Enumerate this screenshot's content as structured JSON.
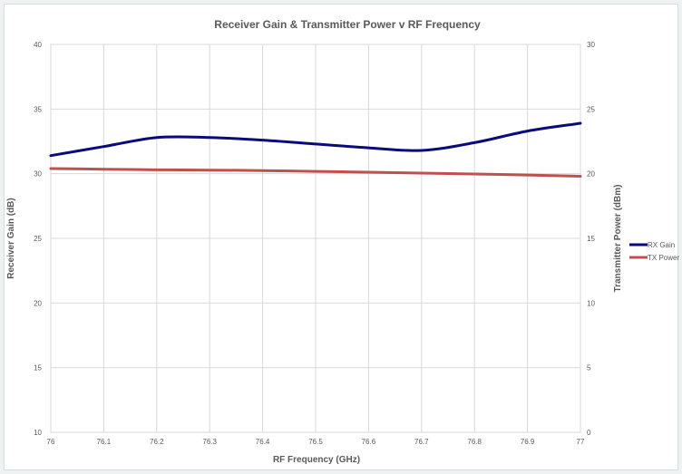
{
  "chart_data": {
    "type": "line",
    "title": "Receiver Gain & Transmitter Power v RF Frequency",
    "xlabel": "RF Frequency (GHz)",
    "ylabel": "Receiver Gain (dB)",
    "y2label": "Transmitter Power (dBm)",
    "x": [
      76,
      76.1,
      76.2,
      76.3,
      76.4,
      76.5,
      76.6,
      76.7,
      76.8,
      76.9,
      77
    ],
    "x_tick_labels": [
      "76",
      "76.1",
      "76.2",
      "76.3",
      "76.4",
      "76.5",
      "76.6",
      "76.7",
      "76.8",
      "76.9",
      "77"
    ],
    "xlim": [
      76,
      77
    ],
    "ylim": [
      10,
      40
    ],
    "y_ticks": [
      10,
      15,
      20,
      25,
      30,
      35,
      40
    ],
    "y2lim": [
      0,
      30
    ],
    "y2_ticks": [
      0,
      5,
      10,
      15,
      20,
      25,
      30
    ],
    "grid": true,
    "legend_position": "right",
    "series": [
      {
        "name": "RX Gain",
        "axis": "left",
        "color": "#0a0a7a",
        "values": [
          31.4,
          32.1,
          32.8,
          32.8,
          32.6,
          32.3,
          32.0,
          31.8,
          32.4,
          33.3,
          33.9
        ]
      },
      {
        "name": "TX Power",
        "axis": "right",
        "color": "#c0504d",
        "values": [
          20.4,
          20.35,
          20.3,
          20.28,
          20.24,
          20.18,
          20.12,
          20.05,
          19.98,
          19.9,
          19.8
        ]
      }
    ]
  }
}
